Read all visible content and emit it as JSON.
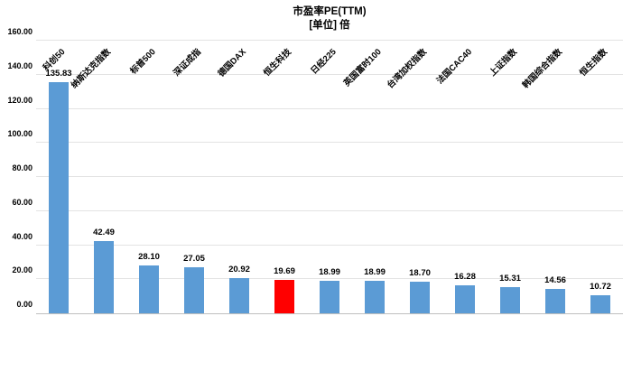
{
  "chart_data": {
    "type": "bar",
    "title": "市盈率PE(TTM)",
    "subtitle": "[单位] 倍",
    "categories": [
      "科创50",
      "纳斯达克指数",
      "标普500",
      "深证成指",
      "德国DAX",
      "恒生科技",
      "日经225",
      "英国富时100",
      "台湾加权指数",
      "法国CAC40",
      "上证指数",
      "韩国综合指数",
      "恒生指数"
    ],
    "values": [
      135.83,
      42.49,
      28.1,
      27.05,
      20.92,
      19.69,
      18.99,
      18.99,
      18.7,
      16.28,
      15.31,
      14.56,
      10.72
    ],
    "value_labels": [
      "135.83",
      "42.49",
      "28.10",
      "27.05",
      "20.92",
      "19.69",
      "18.99",
      "18.99",
      "18.70",
      "16.28",
      "15.31",
      "14.56",
      "10.72"
    ],
    "highlight_index": 5,
    "bar_color": "#5b9bd5",
    "highlight_color": "#ff0000",
    "ylim": [
      0,
      160
    ],
    "ytick_step": 20,
    "ytick_labels": [
      "0.00",
      "20.00",
      "40.00",
      "60.00",
      "80.00",
      "100.00",
      "120.00",
      "140.00",
      "160.00"
    ],
    "grid": true,
    "legend": "none",
    "xlabel": "",
    "ylabel": ""
  }
}
